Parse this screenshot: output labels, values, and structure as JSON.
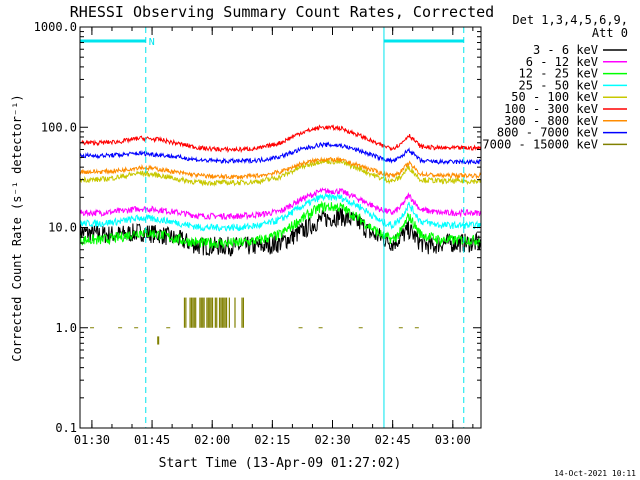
{
  "chart_data": {
    "type": "line",
    "title": "RHESSI Observing Summary Count Rates, Corrected",
    "xlabel": "Start Time (13-Apr-09 01:27:02)",
    "ylabel": "Corrected Count Rate (s⁻¹ detector⁻¹)",
    "y_scale": "log",
    "ylim": [
      0.1,
      1000
    ],
    "y_ticks": [
      {
        "v": 1000,
        "label": "1000.0"
      },
      {
        "v": 100,
        "label": "100.0"
      },
      {
        "v": 10,
        "label": "10.0"
      },
      {
        "v": 1,
        "label": "1.0"
      },
      {
        "v": 0.1,
        "label": "0.1"
      }
    ],
    "xlim_minutes": [
      0,
      100
    ],
    "x_ticks": [
      {
        "m": 2.97,
        "label": "01:30"
      },
      {
        "m": 17.97,
        "label": "01:45"
      },
      {
        "m": 32.97,
        "label": "02:00"
      },
      {
        "m": 47.97,
        "label": "02:15"
      },
      {
        "m": 62.97,
        "label": "02:30"
      },
      {
        "m": 77.97,
        "label": "02:45"
      },
      {
        "m": 92.97,
        "label": "03:00"
      }
    ],
    "legend": {
      "header": [
        "Det 1,3,4,5,6,9,",
        "Att 0"
      ],
      "placement": "right"
    },
    "night_flag": "N",
    "night_intervals": [
      [
        0,
        16.4
      ],
      [
        75.8,
        95.7
      ]
    ],
    "series": [
      {
        "name": "3 - 6 keV",
        "color": "#000000",
        "x": [
          0,
          5,
          10,
          15,
          20,
          25,
          30,
          35,
          40,
          45,
          50,
          55,
          60,
          65,
          70,
          72,
          75,
          78,
          80,
          82,
          85,
          88,
          90,
          95,
          100
        ],
        "y": [
          9,
          8.5,
          8.5,
          9,
          8.5,
          7.5,
          6.5,
          6.5,
          6.5,
          6.5,
          7,
          9,
          12,
          13,
          11,
          9,
          8,
          7,
          8,
          9.5,
          7,
          6.5,
          7,
          7,
          7
        ]
      },
      {
        "name": "6 - 12 keV",
        "color": "#ff00ff",
        "x": [
          0,
          5,
          10,
          15,
          20,
          25,
          30,
          35,
          40,
          45,
          50,
          55,
          60,
          65,
          70,
          75,
          78,
          80,
          82,
          85,
          90,
          95,
          100
        ],
        "y": [
          14,
          14,
          14.5,
          15.5,
          15,
          14,
          13,
          13,
          13,
          13.5,
          14.5,
          19,
          23,
          23,
          19,
          15,
          14,
          16,
          21,
          15,
          14,
          14,
          14
        ]
      },
      {
        "name": "12 - 25 keV",
        "color": "#00ff00",
        "x": [
          0,
          5,
          10,
          15,
          20,
          25,
          30,
          35,
          40,
          45,
          50,
          55,
          60,
          65,
          70,
          75,
          78,
          80,
          82,
          85,
          90,
          95,
          100
        ],
        "y": [
          7.5,
          7.5,
          8,
          9,
          8.5,
          7.5,
          7,
          7,
          7,
          7.5,
          8.5,
          12,
          16,
          16,
          12,
          8.5,
          7.5,
          9,
          13,
          8.5,
          7.5,
          7.5,
          7.5
        ]
      },
      {
        "name": "25 - 50 keV",
        "color": "#00ffff",
        "x": [
          0,
          5,
          10,
          15,
          20,
          25,
          30,
          35,
          40,
          45,
          50,
          55,
          60,
          65,
          70,
          75,
          78,
          80,
          82,
          85,
          90,
          95,
          100
        ],
        "y": [
          11,
          11,
          11.5,
          12.5,
          12,
          11,
          10,
          10,
          10,
          10.5,
          12,
          16,
          20,
          20,
          16,
          11.5,
          10.5,
          12.5,
          17,
          11.5,
          10.5,
          10.5,
          10.5
        ]
      },
      {
        "name": "50 - 100 keV",
        "color": "#c8c800",
        "x": [
          0,
          5,
          10,
          15,
          20,
          25,
          30,
          35,
          40,
          45,
          50,
          55,
          60,
          65,
          70,
          75,
          78,
          80,
          82,
          85,
          90,
          95,
          100
        ],
        "y": [
          30,
          30,
          32,
          35,
          33,
          30,
          28,
          28,
          28,
          29,
          32,
          40,
          46,
          45,
          38,
          31,
          29,
          32,
          40,
          30,
          29,
          29,
          29
        ]
      },
      {
        "name": "100 - 300 keV",
        "color": "#ff0000",
        "x": [
          0,
          5,
          10,
          15,
          20,
          25,
          30,
          35,
          40,
          45,
          50,
          55,
          60,
          65,
          70,
          75,
          78,
          80,
          82,
          85,
          90,
          95,
          100
        ],
        "y": [
          70,
          70,
          72,
          78,
          75,
          68,
          62,
          60,
          60,
          62,
          70,
          88,
          100,
          98,
          82,
          66,
          62,
          68,
          84,
          64,
          62,
          62,
          62
        ]
      },
      {
        "name": "300 - 800 keV",
        "color": "#ff8c00",
        "x": [
          0,
          5,
          10,
          15,
          20,
          25,
          30,
          35,
          40,
          45,
          50,
          55,
          60,
          65,
          70,
          75,
          78,
          80,
          82,
          85,
          90,
          95,
          100
        ],
        "y": [
          36,
          36,
          37,
          40,
          38,
          35,
          33,
          32,
          32,
          33,
          36,
          43,
          48,
          47,
          41,
          35,
          33,
          36,
          44,
          34,
          33,
          33,
          33
        ]
      },
      {
        "name": "800 - 7000 keV",
        "color": "#0000ff",
        "x": [
          0,
          5,
          10,
          15,
          20,
          25,
          30,
          35,
          40,
          45,
          50,
          55,
          60,
          65,
          70,
          75,
          78,
          80,
          82,
          85,
          90,
          95,
          100
        ],
        "y": [
          52,
          52,
          53,
          55,
          53,
          50,
          47,
          46,
          46,
          47,
          51,
          60,
          67,
          66,
          58,
          49,
          46,
          50,
          60,
          46,
          45,
          45,
          45
        ]
      },
      {
        "name": "7000 - 15000 keV",
        "color": "#808000",
        "x": [
          25,
          27,
          29,
          31,
          33,
          35,
          37,
          40,
          42
        ],
        "y": [
          1.0,
          1.5,
          2.0,
          2.0,
          2.0,
          2.0,
          2.0,
          2.0,
          1.0
        ],
        "extra_points": [
          [
            3,
            1.0
          ],
          [
            10,
            1.0
          ],
          [
            14,
            1.0
          ],
          [
            22,
            1.0
          ],
          [
            55,
            1.0
          ],
          [
            60,
            1.0
          ],
          [
            70,
            1.0
          ],
          [
            80,
            1.0
          ],
          [
            84,
            1.0
          ]
        ]
      }
    ]
  },
  "footer": {
    "timestamp": "14-Oct-2021 10:11"
  }
}
